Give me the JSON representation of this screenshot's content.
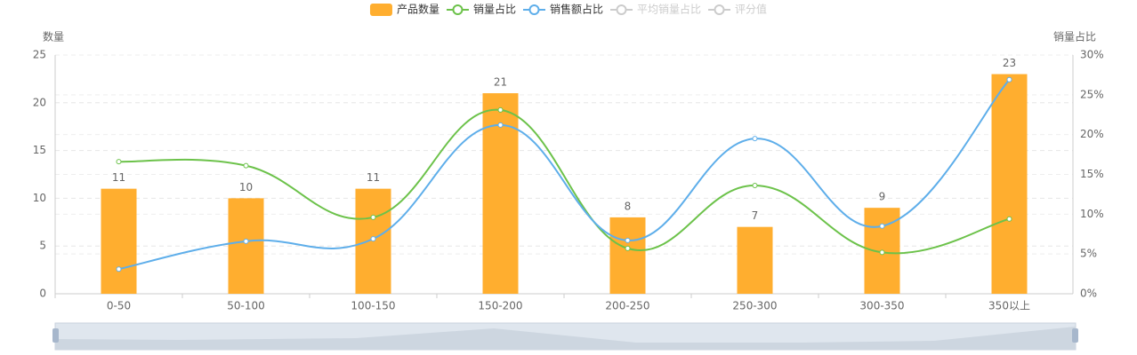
{
  "chart_data": {
    "type": "bar-line",
    "categories": [
      "0-50",
      "50-100",
      "100-150",
      "150-200",
      "200-250",
      "250-300",
      "300-350",
      "350以上"
    ],
    "y_label": "数量",
    "y2_label": "销量占比",
    "ylim": [
      0,
      25
    ],
    "yticks": [
      0,
      5,
      10,
      15,
      20,
      25
    ],
    "y2lim": [
      0,
      30
    ],
    "y2ticks": [
      {
        "value": 0,
        "label": "0%"
      },
      {
        "value": 5,
        "label": "5%"
      },
      {
        "value": 10,
        "label": "10%"
      },
      {
        "value": 15,
        "label": "15%"
      },
      {
        "value": 20,
        "label": "20%"
      },
      {
        "value": 25,
        "label": "25%"
      },
      {
        "value": 30,
        "label": "30%"
      }
    ],
    "grid": true,
    "series": [
      {
        "name": "产品数量",
        "type": "bar",
        "color": "#ffae2f",
        "values": [
          11,
          10,
          11,
          21,
          8,
          7,
          9,
          23
        ]
      },
      {
        "name": "销量占比",
        "type": "line",
        "axis": "y2",
        "color": "#6cc24a",
        "values": [
          16.6,
          16.1,
          9.6,
          23.1,
          5.7,
          13.6,
          5.2,
          9.4
        ]
      },
      {
        "name": "销售额占比",
        "type": "line",
        "axis": "y2",
        "color": "#5eaeea",
        "values": [
          3.1,
          6.6,
          6.9,
          21.2,
          6.7,
          19.5,
          8.5,
          26.9
        ]
      },
      {
        "name": "平均销量占比",
        "type": "line",
        "axis": "y2",
        "color": "#cccccc",
        "selected": false
      },
      {
        "name": "评分值",
        "type": "line",
        "axis": "y2",
        "color": "#cccccc",
        "selected": false
      }
    ]
  }
}
